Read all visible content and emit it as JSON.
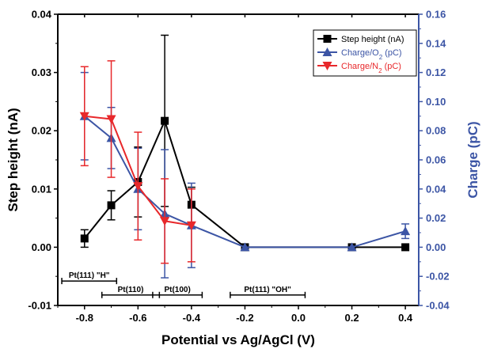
{
  "chart_data": {
    "type": "line",
    "xlabel": "Potential vs Ag/AgCl (V)",
    "ylabel_left": "Step height (nA)",
    "ylabel_right": "Charge (pC)",
    "xlim": [
      -0.9,
      0.45
    ],
    "ylim_left": [
      -0.01,
      0.04
    ],
    "ylim_right": [
      -0.04,
      0.16
    ],
    "x_ticks": [
      -0.8,
      -0.6,
      -0.4,
      -0.2,
      0.0,
      0.2,
      0.4
    ],
    "x_tick_labels": [
      "-0.8",
      "-0.6",
      "-0.4",
      "-0.2",
      "0.0",
      "0.2",
      "0.4"
    ],
    "y_left_ticks": [
      -0.01,
      0.0,
      0.01,
      0.02,
      0.03,
      0.04
    ],
    "y_left_tick_labels": [
      "-0.01",
      "0.00",
      "0.01",
      "0.02",
      "0.03",
      "0.04"
    ],
    "y_right_ticks": [
      -0.04,
      -0.02,
      0.0,
      0.02,
      0.04,
      0.06,
      0.08,
      0.1,
      0.12,
      0.14,
      0.16
    ],
    "y_right_tick_labels": [
      "-0.04",
      "-0.02",
      "0.00",
      "0.02",
      "0.04",
      "0.06",
      "0.08",
      "0.10",
      "0.12",
      "0.14",
      "0.16"
    ],
    "legend_position": "top-right",
    "series": [
      {
        "name": "Step height (nA)",
        "axis": "left",
        "color": "#000000",
        "marker": "square",
        "points": [
          {
            "x": -0.8,
            "y": 0.0015,
            "err": 0.0015
          },
          {
            "x": -0.7,
            "y": 0.0072,
            "err": 0.0025
          },
          {
            "x": -0.6,
            "y": 0.0112,
            "err": 0.006
          },
          {
            "x": -0.5,
            "y": 0.0217,
            "err": 0.0147
          },
          {
            "x": -0.4,
            "y": 0.0073,
            "err": 0.003
          },
          {
            "x": -0.2,
            "y": 0.0,
            "err": 0.0
          },
          {
            "x": 0.2,
            "y": 0.0,
            "err": 0.0
          },
          {
            "x": 0.4,
            "y": 0.0,
            "err": 0.0
          }
        ]
      },
      {
        "name": "Charge/O2 (pC)",
        "name_main": "Charge/O",
        "name_sub": "2",
        "name_tail": " (pC)",
        "axis": "right",
        "color": "#3c55a5",
        "marker": "triangle-up",
        "points": [
          {
            "x": -0.8,
            "y": 0.09,
            "err": 0.03
          },
          {
            "x": -0.7,
            "y": 0.075,
            "err": 0.021
          },
          {
            "x": -0.6,
            "y": 0.04,
            "err": 0.028
          },
          {
            "x": -0.5,
            "y": 0.023,
            "err": 0.044
          },
          {
            "x": -0.4,
            "y": 0.015,
            "err": 0.029
          },
          {
            "x": -0.2,
            "y": 0.0,
            "err": 0.0
          },
          {
            "x": 0.2,
            "y": 0.0,
            "err": 0.0
          },
          {
            "x": 0.4,
            "y": 0.011,
            "err": 0.005
          }
        ]
      },
      {
        "name": "Charge/N2 (pC)",
        "name_main": "Charge/N",
        "name_sub": "2",
        "name_tail": " (pC)",
        "axis": "right",
        "color": "#e8282b",
        "marker": "triangle-down",
        "points": [
          {
            "x": -0.8,
            "y": 0.09,
            "err": 0.034
          },
          {
            "x": -0.7,
            "y": 0.088,
            "err": 0.04
          },
          {
            "x": -0.6,
            "y": 0.042,
            "err": 0.037
          },
          {
            "x": -0.5,
            "y": 0.018,
            "err": 0.029
          },
          {
            "x": -0.4,
            "y": 0.015,
            "err": 0.025
          }
        ]
      }
    ],
    "annotations": [
      {
        "label": "Pt(111) \"H\"",
        "x_start": -0.885,
        "x_end": -0.68,
        "y": -0.0058
      },
      {
        "label": "Pt(110)",
        "x_start": -0.735,
        "x_end": -0.52,
        "y": -0.0082
      },
      {
        "label": "Pt(100)",
        "x_start": -0.545,
        "x_end": -0.36,
        "y": -0.0082
      },
      {
        "label": "Pt(111) \"OH\"",
        "x_start": -0.255,
        "x_end": 0.025,
        "y": -0.0082
      }
    ]
  }
}
